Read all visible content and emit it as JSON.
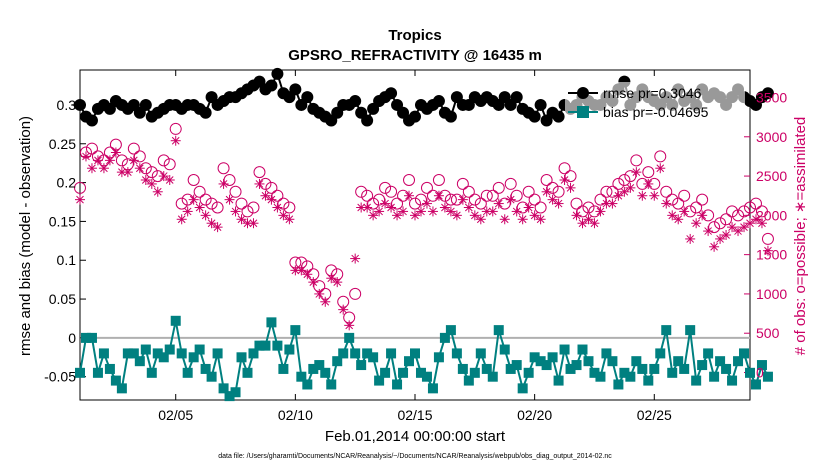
{
  "colors": {
    "rmse": "#000000",
    "bias": "#008080",
    "obs": "#cc0066",
    "zero_line": "#b0b0b0"
  },
  "chart_data": {
    "type": "line",
    "title": "Tropics",
    "subtitle": "GPSRO_REFRACTIVITY @ 16435 m",
    "xlabel": "Feb.01,2014 00:00:00 start",
    "ylabel": "rmse and bias (model - observation)",
    "ylabel_right": "# of obs: o=possible; ∗=assimilated",
    "footnote": "data file: /Users/gharamti/Documents/NCAR/Reanalysis/~/Documents/NCAR/Reanalysis/webpub/obs_diag_output_2014-02.nc",
    "x_start_day": 1.0,
    "x_step_days": 0.25,
    "xlim": [
      1.0,
      29.0
    ],
    "ylim": [
      -0.08,
      0.345
    ],
    "ylim_right": [
      -350,
      3850
    ],
    "x_ticks": [
      5,
      10,
      15,
      20,
      25
    ],
    "x_tick_labels": [
      "02/05",
      "02/10",
      "02/15",
      "02/20",
      "02/25"
    ],
    "y_ticks": [
      -0.05,
      0,
      0.05,
      0.1,
      0.15,
      0.2,
      0.25,
      0.3
    ],
    "y_tick_labels": [
      "-0.05",
      "0",
      "0.05",
      "0.1",
      "0.15",
      "0.2",
      "0.25",
      "0.3"
    ],
    "y2_ticks": [
      0,
      500,
      1000,
      1500,
      2000,
      2500,
      3000,
      3500
    ],
    "y2_tick_labels": [
      "0",
      "500",
      "1000",
      "1500",
      "2000",
      "2500",
      "3000",
      "3500"
    ],
    "legend": [
      {
        "label": "rmse pr=0.3046",
        "series": "rmse"
      },
      {
        "label": "bias pr=-0.04695",
        "series": "bias"
      }
    ],
    "series": [
      {
        "name": "rmse",
        "axis": "left",
        "values": [
          0.3,
          0.285,
          0.28,
          0.295,
          0.3,
          0.295,
          0.305,
          0.3,
          0.295,
          0.3,
          0.29,
          0.3,
          0.285,
          0.29,
          0.295,
          0.3,
          0.3,
          0.295,
          0.3,
          0.3,
          0.295,
          0.29,
          0.31,
          0.3,
          0.305,
          0.31,
          0.31,
          0.315,
          0.32,
          0.325,
          0.33,
          0.32,
          0.325,
          0.34,
          0.315,
          0.31,
          0.32,
          0.3,
          0.31,
          0.295,
          0.29,
          0.285,
          0.28,
          0.29,
          0.3,
          0.3,
          0.305,
          0.29,
          0.28,
          0.295,
          0.305,
          0.31,
          0.315,
          0.3,
          0.29,
          0.28,
          0.285,
          0.3,
          0.295,
          0.3,
          0.305,
          0.29,
          0.285,
          0.31,
          0.3,
          0.3,
          0.31,
          0.305,
          0.31,
          0.305,
          0.3,
          0.31,
          0.3,
          0.31,
          0.295,
          0.29,
          0.285,
          0.3,
          0.28,
          0.29,
          0.285,
          0.3,
          0.295,
          0.3,
          0.31,
          0.305,
          0.3,
          0.3,
          0.31,
          0.305,
          0.32,
          0.33,
          0.3,
          0.31,
          0.32,
          0.31,
          0.305,
          0.3,
          0.31,
          0.3,
          0.32,
          0.305,
          0.31,
          0.3,
          0.32,
          0.31,
          0.315,
          0.31,
          0.3,
          0.31,
          0.32,
          0.31,
          0.305,
          0.3,
          0.31,
          0.315
        ]
      },
      {
        "name": "bias",
        "axis": "left",
        "values": [
          -0.045,
          0.0,
          0.0,
          -0.045,
          -0.02,
          -0.04,
          -0.055,
          -0.065,
          -0.02,
          -0.02,
          -0.03,
          -0.015,
          -0.045,
          -0.02,
          -0.025,
          -0.015,
          0.022,
          -0.02,
          -0.045,
          -0.025,
          -0.015,
          -0.04,
          -0.05,
          -0.02,
          -0.065,
          -0.075,
          -0.07,
          -0.025,
          -0.045,
          -0.02,
          -0.01,
          -0.01,
          0.02,
          -0.01,
          -0.04,
          -0.015,
          0.01,
          -0.05,
          -0.06,
          -0.04,
          -0.035,
          -0.045,
          -0.06,
          -0.03,
          -0.02,
          0.0,
          -0.02,
          -0.035,
          -0.02,
          -0.025,
          -0.055,
          -0.045,
          -0.02,
          -0.06,
          -0.045,
          -0.03,
          -0.02,
          -0.045,
          -0.05,
          -0.065,
          -0.025,
          0.0,
          0.01,
          -0.02,
          -0.04,
          -0.055,
          -0.045,
          -0.02,
          -0.04,
          -0.05,
          0.01,
          -0.015,
          -0.04,
          -0.035,
          -0.065,
          -0.045,
          -0.025,
          -0.03,
          -0.035,
          -0.025,
          -0.055,
          -0.015,
          -0.04,
          -0.035,
          -0.015,
          -0.03,
          -0.045,
          -0.05,
          -0.02,
          -0.03,
          -0.06,
          -0.045,
          -0.05,
          -0.03,
          -0.04,
          -0.055,
          -0.04,
          -0.02,
          0.01,
          -0.045,
          -0.03,
          -0.04,
          0.01,
          -0.055,
          -0.035,
          -0.02,
          -0.05,
          -0.03,
          -0.04,
          -0.055,
          -0.03,
          -0.02,
          -0.045,
          -0.06,
          -0.035,
          -0.05
        ]
      },
      {
        "name": "obs possible",
        "axis": "right",
        "marker": "circle",
        "values": [
          2350,
          2800,
          2850,
          2750,
          2700,
          2800,
          2900,
          2700,
          2650,
          2850,
          2750,
          2600,
          2550,
          2500,
          2700,
          2650,
          3100,
          2150,
          2200,
          2450,
          2300,
          2200,
          2150,
          2100,
          2600,
          2450,
          2300,
          2150,
          2050,
          2100,
          2550,
          2400,
          2350,
          2250,
          2150,
          2100,
          1400,
          1400,
          1350,
          1250,
          1100,
          1000,
          1300,
          1250,
          900,
          700,
          1000,
          2300,
          2250,
          2150,
          2200,
          2350,
          2300,
          2150,
          2250,
          2450,
          2150,
          2200,
          2350,
          2250,
          2450,
          2250,
          2200,
          2200,
          2400,
          2300,
          2200,
          2150,
          2250,
          2250,
          2350,
          2150,
          2400,
          2250,
          2100,
          2300,
          2200,
          2100,
          2450,
          2350,
          2300,
          2600,
          2500,
          2150,
          2050,
          2100,
          2050,
          2200,
          2300,
          2300,
          2400,
          2450,
          2500,
          2700,
          2400,
          2550,
          2400,
          2750,
          2300,
          2200,
          2150,
          2250,
          2050,
          2100,
          2200,
          2000,
          1850,
          1900,
          1950,
          2050,
          2000,
          2050,
          2100,
          2150,
          2050,
          1700
        ]
      },
      {
        "name": "obs assimilated",
        "axis": "right",
        "marker": "star",
        "values": [
          2200,
          2750,
          2600,
          2700,
          2600,
          2700,
          2800,
          2550,
          2550,
          2700,
          2600,
          2450,
          2400,
          2300,
          2500,
          2450,
          2950,
          1950,
          2050,
          2200,
          2100,
          2000,
          1900,
          1850,
          2400,
          2200,
          2050,
          1950,
          1900,
          1900,
          2400,
          2250,
          2200,
          2100,
          2000,
          1950,
          1300,
          1300,
          1250,
          1150,
          1000,
          900,
          1200,
          1150,
          800,
          600,
          1450,
          2100,
          2100,
          2000,
          2050,
          2150,
          2100,
          2000,
          2050,
          2250,
          2000,
          2050,
          2150,
          2050,
          2250,
          2100,
          2050,
          2000,
          2200,
          2100,
          2000,
          1950,
          2050,
          2050,
          2150,
          1950,
          2200,
          2050,
          1950,
          2100,
          2000,
          1950,
          2300,
          2200,
          2150,
          2450,
          2350,
          2000,
          1900,
          1950,
          1900,
          2050,
          2150,
          2150,
          2250,
          2300,
          2350,
          2550,
          2250,
          2400,
          2250,
          2600,
          2150,
          2000,
          1950,
          2050,
          1700,
          1900,
          2000,
          1800,
          1600,
          1700,
          1750,
          1850,
          1800,
          1850,
          1900,
          1950,
          1900,
          1550
        ]
      }
    ]
  }
}
